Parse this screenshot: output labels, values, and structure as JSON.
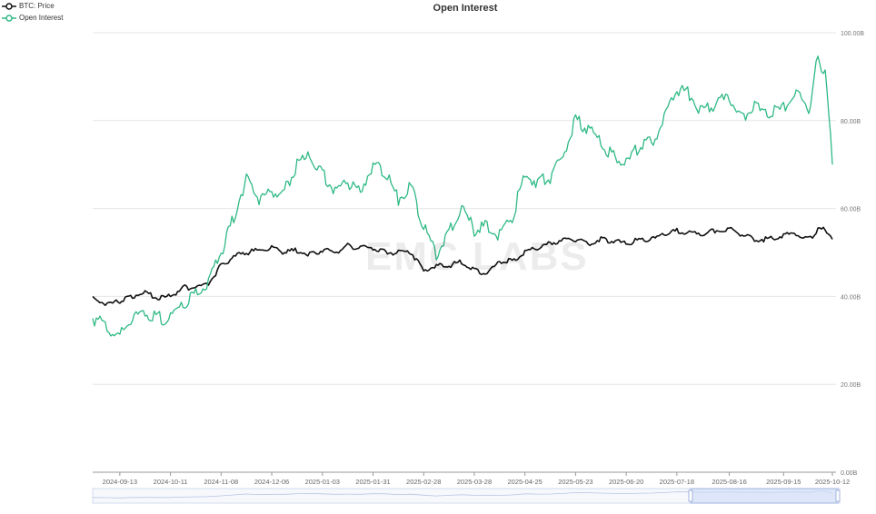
{
  "chart_data": {
    "type": "line",
    "title": "Open Interest",
    "watermark": "EMC LABS",
    "x_tick_labels": [
      "2024-09-13",
      "2024-10-11",
      "2024-11-08",
      "2024-12-06",
      "2025-01-03",
      "2025-01-31",
      "2025-02-28",
      "2025-03-28",
      "2025-04-25",
      "2025-05-23",
      "2025-06-20",
      "2025-07-18",
      "2025-08-16",
      "2025-09-15",
      "2025-10-12"
    ],
    "y_tick_labels": [
      "0.00B",
      "20.00B",
      "40.00B",
      "60.00B",
      "80.00B",
      "100.00B"
    ],
    "ylim": [
      0,
      100
    ],
    "y_unit": "B",
    "x_range": [
      "2024-08-29",
      "2025-10-14"
    ],
    "grid": true,
    "legend_position": "top-left",
    "series": [
      {
        "name": "BTC: Price",
        "color": "#111111",
        "points": [
          [
            "2024-08-29",
            40
          ],
          [
            "2024-09-06",
            38
          ],
          [
            "2024-09-13",
            39
          ],
          [
            "2024-09-20",
            40
          ],
          [
            "2024-09-27",
            41
          ],
          [
            "2024-10-04",
            39.5
          ],
          [
            "2024-10-11",
            40
          ],
          [
            "2024-10-18",
            42
          ],
          [
            "2024-10-25",
            42
          ],
          [
            "2024-11-01",
            43
          ],
          [
            "2024-11-08",
            47
          ],
          [
            "2024-11-15",
            49
          ],
          [
            "2024-11-22",
            50
          ],
          [
            "2024-11-29",
            50.5
          ],
          [
            "2024-12-06",
            51
          ],
          [
            "2024-12-13",
            50
          ],
          [
            "2024-12-20",
            50.5
          ],
          [
            "2024-12-27",
            49.5
          ],
          [
            "2025-01-03",
            50.5
          ],
          [
            "2025-01-10",
            50
          ],
          [
            "2025-01-17",
            51.5
          ],
          [
            "2025-01-24",
            51
          ],
          [
            "2025-01-31",
            51
          ],
          [
            "2025-02-07",
            50
          ],
          [
            "2025-02-14",
            50
          ],
          [
            "2025-02-21",
            50
          ],
          [
            "2025-02-28",
            46
          ],
          [
            "2025-03-07",
            47
          ],
          [
            "2025-03-14",
            47
          ],
          [
            "2025-03-21",
            48
          ],
          [
            "2025-03-28",
            46
          ],
          [
            "2025-04-04",
            45
          ],
          [
            "2025-04-11",
            48
          ],
          [
            "2025-04-18",
            48
          ],
          [
            "2025-04-25",
            50
          ],
          [
            "2025-05-02",
            51
          ],
          [
            "2025-05-09",
            52
          ],
          [
            "2025-05-16",
            53
          ],
          [
            "2025-05-23",
            53
          ],
          [
            "2025-05-30",
            52
          ],
          [
            "2025-06-06",
            53
          ],
          [
            "2025-06-13",
            52.5
          ],
          [
            "2025-06-20",
            52
          ],
          [
            "2025-06-27",
            53
          ],
          [
            "2025-07-04",
            53
          ],
          [
            "2025-07-11",
            54
          ],
          [
            "2025-07-18",
            55
          ],
          [
            "2025-07-25",
            54.5
          ],
          [
            "2025-08-01",
            54
          ],
          [
            "2025-08-08",
            55
          ],
          [
            "2025-08-16",
            55.5
          ],
          [
            "2025-08-23",
            54
          ],
          [
            "2025-08-30",
            53
          ],
          [
            "2025-09-06",
            53
          ],
          [
            "2025-09-15",
            54
          ],
          [
            "2025-09-22",
            54
          ],
          [
            "2025-09-29",
            53
          ],
          [
            "2025-10-04",
            55
          ],
          [
            "2025-10-08",
            55.5
          ],
          [
            "2025-10-12",
            53
          ]
        ]
      },
      {
        "name": "Open Interest",
        "color": "#2fb985",
        "points": [
          [
            "2024-08-29",
            35
          ],
          [
            "2024-09-06",
            33
          ],
          [
            "2024-09-13",
            31
          ],
          [
            "2024-09-20",
            35
          ],
          [
            "2024-09-27",
            36
          ],
          [
            "2024-10-04",
            35
          ],
          [
            "2024-10-11",
            35
          ],
          [
            "2024-10-18",
            38
          ],
          [
            "2024-10-25",
            41
          ],
          [
            "2024-11-01",
            43
          ],
          [
            "2024-11-08",
            50
          ],
          [
            "2024-11-15",
            58
          ],
          [
            "2024-11-22",
            67
          ],
          [
            "2024-11-29",
            62
          ],
          [
            "2024-12-06",
            64
          ],
          [
            "2024-12-13",
            64
          ],
          [
            "2024-12-20",
            70
          ],
          [
            "2024-12-27",
            72
          ],
          [
            "2025-01-03",
            68
          ],
          [
            "2025-01-10",
            64
          ],
          [
            "2025-01-17",
            66
          ],
          [
            "2025-01-24",
            64
          ],
          [
            "2025-01-31",
            70
          ],
          [
            "2025-02-07",
            68
          ],
          [
            "2025-02-14",
            62
          ],
          [
            "2025-02-21",
            65
          ],
          [
            "2025-02-28",
            56
          ],
          [
            "2025-03-07",
            49
          ],
          [
            "2025-03-14",
            55
          ],
          [
            "2025-03-21",
            60
          ],
          [
            "2025-03-28",
            55
          ],
          [
            "2025-04-04",
            56
          ],
          [
            "2025-04-11",
            54
          ],
          [
            "2025-04-18",
            58
          ],
          [
            "2025-04-25",
            68
          ],
          [
            "2025-05-02",
            66
          ],
          [
            "2025-05-09",
            67
          ],
          [
            "2025-05-16",
            72
          ],
          [
            "2025-05-23",
            80
          ],
          [
            "2025-05-30",
            78
          ],
          [
            "2025-06-06",
            75
          ],
          [
            "2025-06-13",
            72
          ],
          [
            "2025-06-20",
            70
          ],
          [
            "2025-06-27",
            74
          ],
          [
            "2025-07-04",
            75
          ],
          [
            "2025-07-11",
            80
          ],
          [
            "2025-07-18",
            87
          ],
          [
            "2025-07-25",
            86
          ],
          [
            "2025-08-01",
            82
          ],
          [
            "2025-08-08",
            84
          ],
          [
            "2025-08-16",
            85
          ],
          [
            "2025-08-23",
            81
          ],
          [
            "2025-08-30",
            83
          ],
          [
            "2025-09-06",
            81
          ],
          [
            "2025-09-15",
            83
          ],
          [
            "2025-09-22",
            86
          ],
          [
            "2025-09-29",
            82
          ],
          [
            "2025-10-04",
            95
          ],
          [
            "2025-10-08",
            90
          ],
          [
            "2025-10-10",
            83
          ],
          [
            "2025-10-12",
            70
          ]
        ]
      }
    ]
  }
}
